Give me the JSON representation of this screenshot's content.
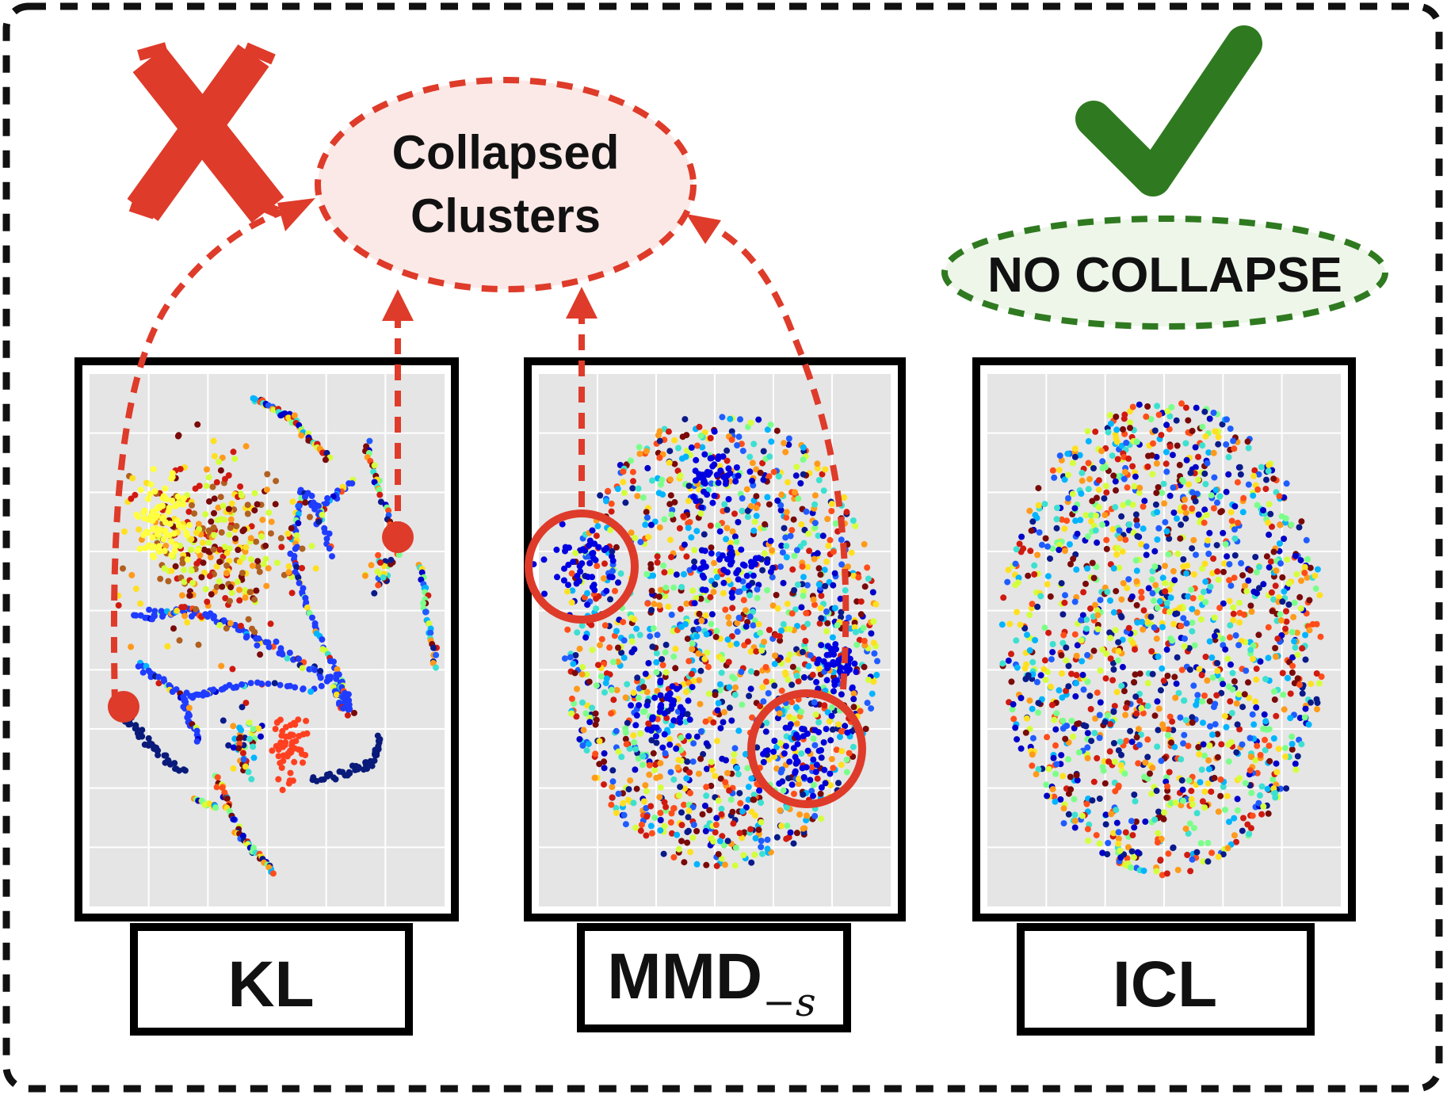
{
  "callouts": {
    "collapsed": "Collapsed Clusters",
    "collapsed_line1": "Collapsed",
    "collapsed_line2": "Clusters",
    "no_collapse": "NO COLLAPSE"
  },
  "panels": [
    {
      "id": "kl",
      "label": "KL",
      "verdict": "collapse"
    },
    {
      "id": "mmd",
      "label": "MMD",
      "label_subscript": "−s",
      "verdict": "collapse"
    },
    {
      "id": "icl",
      "label": "ICL",
      "verdict": "no-collapse"
    }
  ],
  "marks": {
    "cross": "cross-icon",
    "check": "check-icon"
  },
  "colors": {
    "collapse_red": "#de3b2a",
    "collapse_fill": "#fbe9e7",
    "no_collapse_green": "#2f7a20",
    "no_collapse_fill": "#eef6ea",
    "plot_bg": "#e5e5e5",
    "frame_border": "#000000",
    "palette": [
      "#0000c8",
      "#0a1a8a",
      "#1f5cff",
      "#00b4ff",
      "#3ce0d0",
      "#7cff8a",
      "#d4ff3c",
      "#ffe020",
      "#ff9a1a",
      "#ff4d1a",
      "#d01a10",
      "#7a0a0a"
    ]
  }
}
